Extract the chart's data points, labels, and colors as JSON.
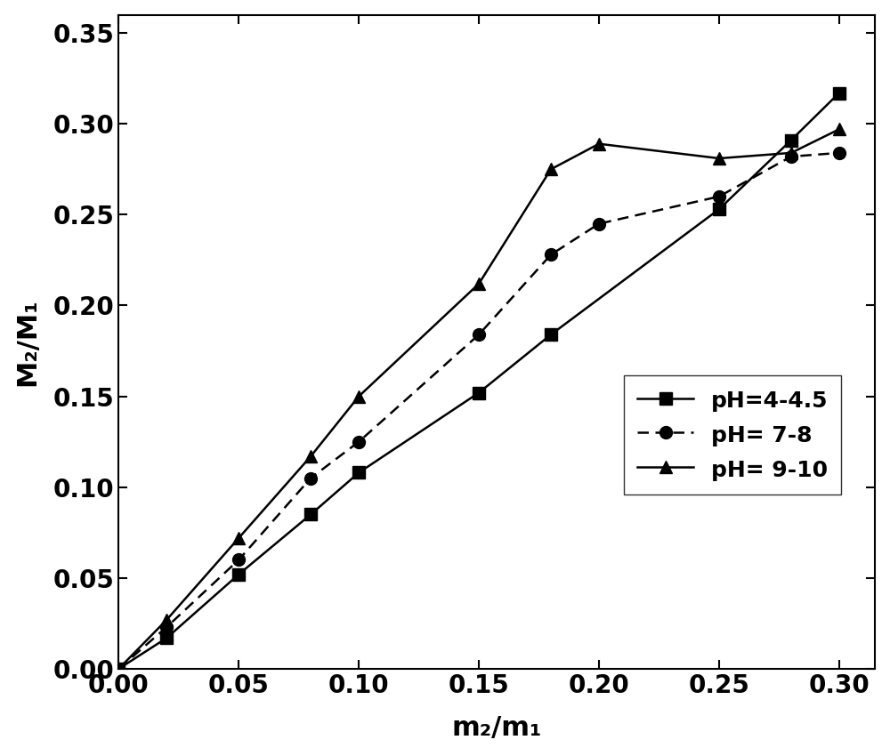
{
  "series": [
    {
      "label": "pH=4-4.5",
      "marker": "s",
      "linestyle": "-",
      "color": "#000000",
      "x": [
        0.0,
        0.02,
        0.05,
        0.08,
        0.1,
        0.15,
        0.18,
        0.25,
        0.28,
        0.3
      ],
      "y": [
        0.0,
        0.017,
        0.052,
        0.085,
        0.108,
        0.152,
        0.184,
        0.253,
        0.291,
        0.317
      ]
    },
    {
      "label": "pH= 7-8",
      "marker": "o",
      "linestyle": "-",
      "color": "#000000",
      "x": [
        0.0,
        0.02,
        0.05,
        0.08,
        0.1,
        0.15,
        0.18,
        0.2,
        0.25,
        0.28,
        0.3
      ],
      "y": [
        0.0,
        0.023,
        0.06,
        0.105,
        0.125,
        0.184,
        0.228,
        0.245,
        0.26,
        0.282,
        0.284
      ]
    },
    {
      "label": "pH= 9-10",
      "marker": "^",
      "linestyle": "-",
      "color": "#000000",
      "x": [
        0.0,
        0.02,
        0.05,
        0.08,
        0.1,
        0.15,
        0.18,
        0.2,
        0.25,
        0.28,
        0.3
      ],
      "y": [
        0.0,
        0.027,
        0.072,
        0.117,
        0.15,
        0.212,
        0.275,
        0.289,
        0.281,
        0.284,
        0.297
      ]
    }
  ],
  "xlabel": "m₂/m₁",
  "ylabel": "M₂/M₁",
  "xlim": [
    0.0,
    0.315
  ],
  "ylim": [
    0.0,
    0.36
  ],
  "xticks": [
    0.0,
    0.05,
    0.1,
    0.15,
    0.2,
    0.25,
    0.3
  ],
  "yticks": [
    0.0,
    0.05,
    0.1,
    0.15,
    0.2,
    0.25,
    0.3,
    0.35
  ],
  "markersize": 10,
  "linewidth": 1.8,
  "background_color": "#ffffff",
  "xlabel_fontsize": 22,
  "ylabel_fontsize": 22,
  "tick_fontsize": 20,
  "legend_fontsize": 18
}
